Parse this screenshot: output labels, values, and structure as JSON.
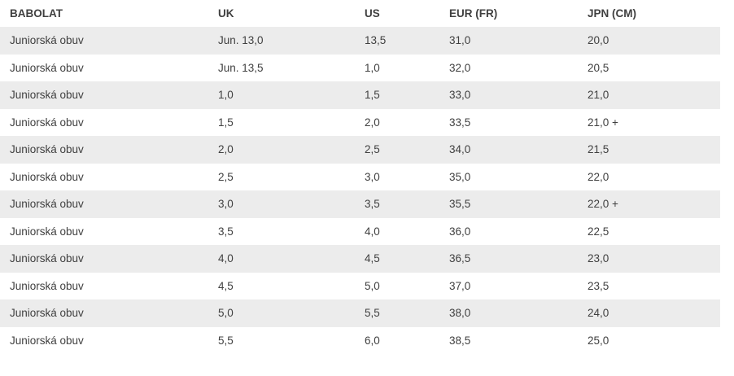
{
  "colors": {
    "row_stripe": "#ececec",
    "text": "#404040",
    "background": "#ffffff"
  },
  "size_chart": {
    "columns": [
      "BABOLAT",
      "UK",
      "US",
      "EUR (FR)",
      "JPN (CM)"
    ],
    "rows": [
      [
        "Juniorská obuv",
        "Jun. 13,0",
        "13,5",
        "31,0",
        "20,0"
      ],
      [
        "Juniorská obuv",
        "Jun. 13,5",
        "1,0",
        "32,0",
        "20,5"
      ],
      [
        "Juniorská obuv",
        "1,0",
        "1,5",
        "33,0",
        "21,0"
      ],
      [
        "Juniorská obuv",
        "1,5",
        "2,0",
        "33,5",
        "21,0 +"
      ],
      [
        "Juniorská obuv",
        "2,0",
        "2,5",
        "34,0",
        "21,5"
      ],
      [
        "Juniorská obuv",
        "2,5",
        "3,0",
        "35,0",
        "22,0"
      ],
      [
        "Juniorská obuv",
        "3,0",
        "3,5",
        "35,5",
        "22,0 +"
      ],
      [
        "Juniorská obuv",
        "3,5",
        "4,0",
        "36,0",
        "22,5"
      ],
      [
        "Juniorská obuv",
        "4,0",
        "4,5",
        "36,5",
        "23,0"
      ],
      [
        "Juniorská obuv",
        "4,5",
        "5,0",
        "37,0",
        "23,5"
      ],
      [
        "Juniorská obuv",
        "5,0",
        "5,5",
        "38,0",
        "24,0"
      ],
      [
        "Juniorská obuv",
        "5,5",
        "6,0",
        "38,5",
        "25,0"
      ]
    ]
  }
}
